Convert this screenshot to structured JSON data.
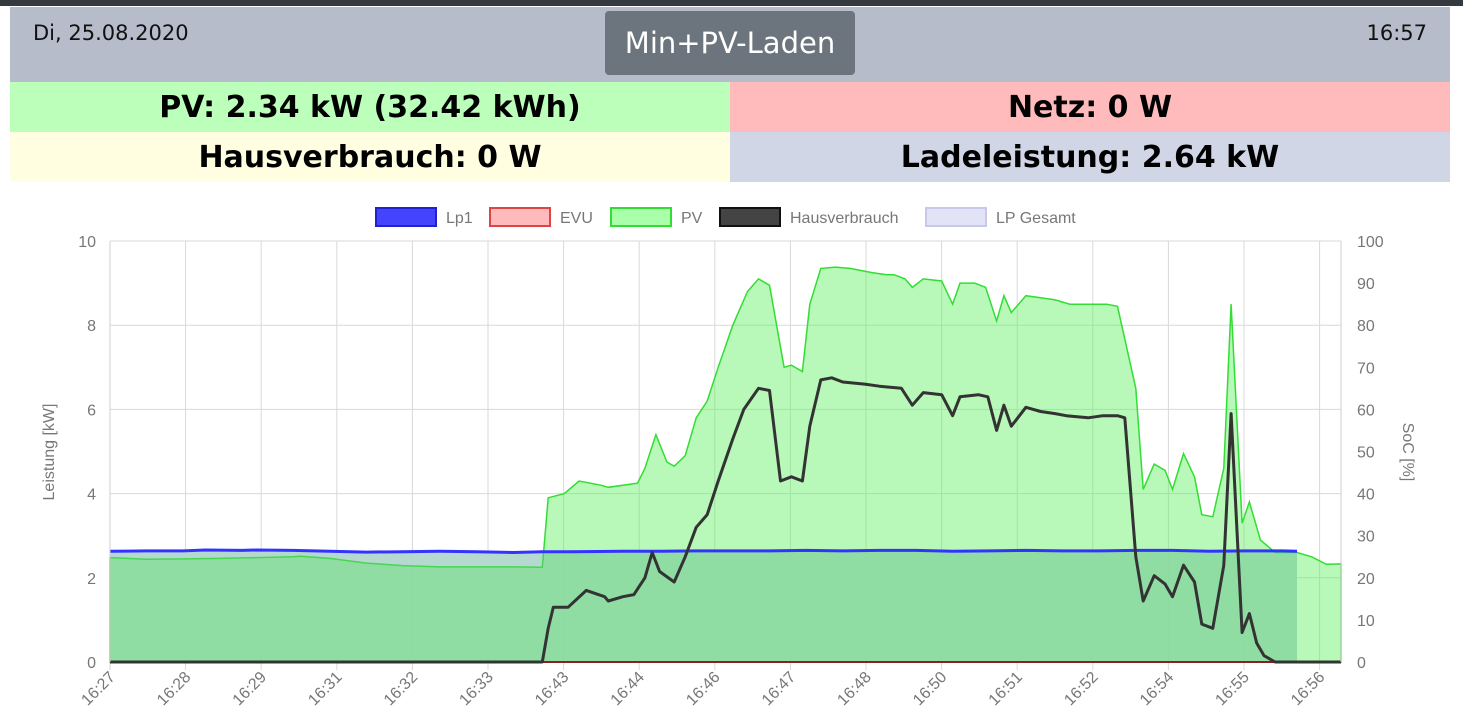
{
  "header": {
    "date": "Di, 25.08.2020",
    "time": "16:57",
    "mode_button": "Min+PV-Laden"
  },
  "tiles": {
    "pv": "PV: 2.34 kW (32.42 kWh)",
    "netz": "Netz: 0 W",
    "haus": "Hausverbrauch: 0 W",
    "lade": "Ladeleistung: 2.64 kW"
  },
  "colors": {
    "header_bg": "#b6bcc9",
    "pv_tile": "#bbffbb",
    "netz_tile": "#ffbbbb",
    "haus_tile": "#fffee0",
    "lade_tile": "#d0d6e5",
    "lp1": "#3333ff",
    "evu": "#cc2222",
    "pv": "#33dd33",
    "haus": "#333333",
    "lp_gesamt": "#dcdcf5"
  },
  "chart_data": {
    "type": "line",
    "legend_position": "top",
    "grid": true,
    "ylabel": "Leistung [kW]",
    "y2label": "SoC [%]",
    "ylim": [
      0,
      10
    ],
    "y2lim": [
      0,
      100
    ],
    "yticks": [
      0,
      2,
      4,
      6,
      8,
      10
    ],
    "y2ticks": [
      0,
      10,
      20,
      30,
      40,
      50,
      60,
      70,
      80,
      90,
      100
    ],
    "x_tick_labels": [
      "16:27",
      "16:28",
      "16:29",
      "16:31",
      "16:32",
      "16:33",
      "16:43",
      "16:44",
      "16:46",
      "16:47",
      "16:48",
      "16:50",
      "16:51",
      "16:52",
      "16:54",
      "16:55",
      "16:56"
    ],
    "legend": [
      "Lp1",
      "EVU",
      "PV",
      "Hausverbrauch",
      "LP Gesamt"
    ],
    "series": [
      {
        "name": "Lp1",
        "color": "#3333ff",
        "points": [
          [
            0,
            2.63
          ],
          [
            0.5,
            2.64
          ],
          [
            1,
            2.64
          ],
          [
            1.3,
            2.66
          ],
          [
            1.8,
            2.65
          ],
          [
            2,
            2.66
          ],
          [
            2.5,
            2.65
          ],
          [
            3,
            2.63
          ],
          [
            3.5,
            2.61
          ],
          [
            4,
            2.62
          ],
          [
            4.5,
            2.63
          ],
          [
            5,
            2.62
          ],
          [
            5.5,
            2.6
          ],
          [
            5.9,
            2.62
          ],
          [
            6.3,
            2.62
          ],
          [
            7,
            2.63
          ],
          [
            7.5,
            2.63
          ],
          [
            8,
            2.64
          ],
          [
            8.5,
            2.64
          ],
          [
            9,
            2.64
          ],
          [
            9.5,
            2.65
          ],
          [
            10,
            2.64
          ],
          [
            10.5,
            2.65
          ],
          [
            11,
            2.65
          ],
          [
            11.5,
            2.63
          ],
          [
            12,
            2.64
          ],
          [
            12.5,
            2.65
          ],
          [
            13,
            2.64
          ],
          [
            13.5,
            2.64
          ],
          [
            14,
            2.65
          ],
          [
            14.5,
            2.65
          ],
          [
            15,
            2.63
          ],
          [
            15.5,
            2.64
          ],
          [
            16,
            2.64
          ],
          [
            16.2,
            2.63
          ]
        ]
      },
      {
        "name": "EVU",
        "color": "#cc2222",
        "points": [
          [
            0,
            0
          ],
          [
            16.2,
            0
          ]
        ]
      },
      {
        "name": "PV",
        "color": "#33dd33",
        "points": [
          [
            0,
            2.48
          ],
          [
            0.5,
            2.44
          ],
          [
            1,
            2.45
          ],
          [
            1.5,
            2.46
          ],
          [
            2,
            2.48
          ],
          [
            2.5,
            2.5
          ],
          [
            2.6,
            2.51
          ],
          [
            3,
            2.46
          ],
          [
            3.5,
            2.35
          ],
          [
            4,
            2.29
          ],
          [
            4.5,
            2.26
          ],
          [
            5,
            2.26
          ],
          [
            5.5,
            2.26
          ],
          [
            5.9,
            2.25
          ],
          [
            5.98,
            3.9
          ],
          [
            6.2,
            4.0
          ],
          [
            6.4,
            4.3
          ],
          [
            6.7,
            4.2
          ],
          [
            6.8,
            4.15
          ],
          [
            7.2,
            4.25
          ],
          [
            7.3,
            4.6
          ],
          [
            7.45,
            5.4
          ],
          [
            7.6,
            4.75
          ],
          [
            7.7,
            4.65
          ],
          [
            7.85,
            4.9
          ],
          [
            8.0,
            5.8
          ],
          [
            8.15,
            6.2
          ],
          [
            8.3,
            7.0
          ],
          [
            8.5,
            8.0
          ],
          [
            8.7,
            8.8
          ],
          [
            8.85,
            9.1
          ],
          [
            9.0,
            8.95
          ],
          [
            9.2,
            7.0
          ],
          [
            9.3,
            7.05
          ],
          [
            9.45,
            6.9
          ],
          [
            9.55,
            8.5
          ],
          [
            9.7,
            9.35
          ],
          [
            9.9,
            9.38
          ],
          [
            10.1,
            9.35
          ],
          [
            10.4,
            9.25
          ],
          [
            10.6,
            9.2
          ],
          [
            10.7,
            9.2
          ],
          [
            10.85,
            9.1
          ],
          [
            10.95,
            8.9
          ],
          [
            11.1,
            9.1
          ],
          [
            11.35,
            9.05
          ],
          [
            11.5,
            8.5
          ],
          [
            11.6,
            9.0
          ],
          [
            11.8,
            9.0
          ],
          [
            11.95,
            8.9
          ],
          [
            12.1,
            8.1
          ],
          [
            12.2,
            8.7
          ],
          [
            12.3,
            8.3
          ],
          [
            12.5,
            8.7
          ],
          [
            12.7,
            8.65
          ],
          [
            12.9,
            8.6
          ],
          [
            13.1,
            8.5
          ],
          [
            13.35,
            8.5
          ],
          [
            13.6,
            8.5
          ],
          [
            13.75,
            8.45
          ],
          [
            14.0,
            6.5
          ],
          [
            14.1,
            4.1
          ],
          [
            14.25,
            4.7
          ],
          [
            14.4,
            4.55
          ],
          [
            14.5,
            4.1
          ],
          [
            14.65,
            4.95
          ],
          [
            14.8,
            4.4
          ],
          [
            14.9,
            3.5
          ],
          [
            15.05,
            3.45
          ],
          [
            15.2,
            4.6
          ],
          [
            15.3,
            8.5
          ],
          [
            15.45,
            3.3
          ],
          [
            15.55,
            3.8
          ],
          [
            15.7,
            2.9
          ],
          [
            15.9,
            2.6
          ],
          [
            16.2,
            2.6
          ],
          [
            16.4,
            2.5
          ],
          [
            16.6,
            2.32
          ],
          [
            16.8,
            2.33
          ]
        ]
      },
      {
        "name": "Hausverbrauch",
        "color": "#333333",
        "points": [
          [
            0,
            0
          ],
          [
            5.9,
            0
          ],
          [
            5.98,
            0.8
          ],
          [
            6.05,
            1.3
          ],
          [
            6.25,
            1.3
          ],
          [
            6.5,
            1.7
          ],
          [
            6.75,
            1.55
          ],
          [
            6.8,
            1.45
          ],
          [
            7.0,
            1.55
          ],
          [
            7.15,
            1.6
          ],
          [
            7.3,
            2.0
          ],
          [
            7.4,
            2.6
          ],
          [
            7.5,
            2.15
          ],
          [
            7.7,
            1.9
          ],
          [
            7.85,
            2.5
          ],
          [
            8.0,
            3.2
          ],
          [
            8.15,
            3.5
          ],
          [
            8.3,
            4.3
          ],
          [
            8.5,
            5.3
          ],
          [
            8.65,
            6.0
          ],
          [
            8.85,
            6.5
          ],
          [
            9.0,
            6.45
          ],
          [
            9.15,
            4.3
          ],
          [
            9.3,
            4.4
          ],
          [
            9.45,
            4.3
          ],
          [
            9.55,
            5.6
          ],
          [
            9.7,
            6.7
          ],
          [
            9.85,
            6.75
          ],
          [
            10.0,
            6.65
          ],
          [
            10.3,
            6.6
          ],
          [
            10.5,
            6.55
          ],
          [
            10.8,
            6.5
          ],
          [
            10.95,
            6.1
          ],
          [
            11.1,
            6.4
          ],
          [
            11.35,
            6.35
          ],
          [
            11.5,
            5.85
          ],
          [
            11.6,
            6.3
          ],
          [
            11.85,
            6.35
          ],
          [
            11.98,
            6.3
          ],
          [
            12.1,
            5.5
          ],
          [
            12.2,
            6.1
          ],
          [
            12.3,
            5.6
          ],
          [
            12.5,
            6.05
          ],
          [
            12.7,
            5.95
          ],
          [
            12.9,
            5.9
          ],
          [
            13.05,
            5.85
          ],
          [
            13.35,
            5.8
          ],
          [
            13.55,
            5.85
          ],
          [
            13.75,
            5.85
          ],
          [
            13.85,
            5.8
          ],
          [
            14.0,
            2.5
          ],
          [
            14.1,
            1.45
          ],
          [
            14.25,
            2.05
          ],
          [
            14.4,
            1.85
          ],
          [
            14.5,
            1.55
          ],
          [
            14.65,
            2.3
          ],
          [
            14.8,
            1.9
          ],
          [
            14.9,
            0.9
          ],
          [
            15.05,
            0.8
          ],
          [
            15.2,
            2.3
          ],
          [
            15.3,
            5.9
          ],
          [
            15.45,
            0.7
          ],
          [
            15.55,
            1.15
          ],
          [
            15.65,
            0.45
          ],
          [
            15.75,
            0.15
          ],
          [
            15.9,
            0
          ],
          [
            16.8,
            0
          ]
        ]
      },
      {
        "name": "LP Gesamt",
        "color": "#dcdcf5",
        "points": [
          [
            0,
            2.63
          ],
          [
            16.2,
            2.63
          ]
        ]
      }
    ]
  }
}
